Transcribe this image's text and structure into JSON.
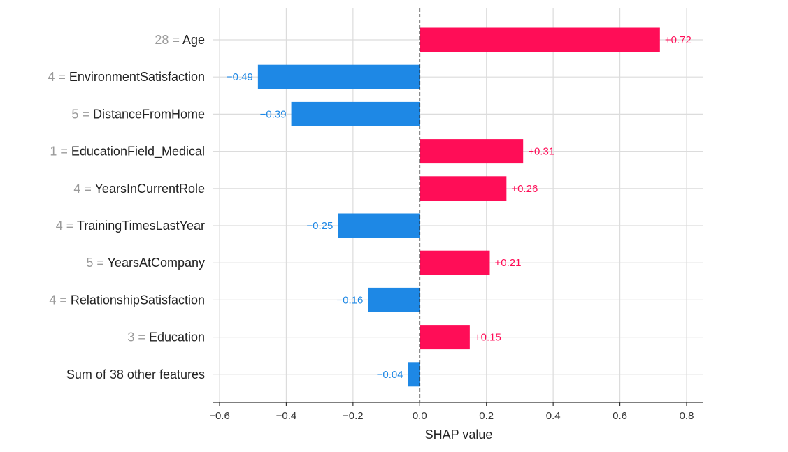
{
  "chart_data": {
    "type": "bar",
    "orientation": "horizontal",
    "xlabel": "SHAP value",
    "xlim": [
      -0.62,
      0.85
    ],
    "xticks": [
      -0.6,
      -0.4,
      -0.2,
      0.0,
      0.2,
      0.4,
      0.6,
      0.8
    ],
    "xtick_labels": [
      "−0.6",
      "−0.4",
      "−0.2",
      "0.0",
      "0.2",
      "0.4",
      "0.6",
      "0.8"
    ],
    "grid": true,
    "positive_color": "#ff0d57",
    "negative_color": "#1e88e5",
    "zero_line_style": "dashed",
    "features": [
      {
        "value_prefix": "28 = ",
        "name": "Age",
        "shap": 0.72,
        "label": "+0.72"
      },
      {
        "value_prefix": "4 = ",
        "name": "EnvironmentSatisfaction",
        "shap": -0.485,
        "label": "−0.49"
      },
      {
        "value_prefix": "5 = ",
        "name": "DistanceFromHome",
        "shap": -0.385,
        "label": "−0.39"
      },
      {
        "value_prefix": "1 = ",
        "name": "EducationField_Medical",
        "shap": 0.31,
        "label": "+0.31"
      },
      {
        "value_prefix": "4 = ",
        "name": "YearsInCurrentRole",
        "shap": 0.26,
        "label": "+0.26"
      },
      {
        "value_prefix": "4 = ",
        "name": "TrainingTimesLastYear",
        "shap": -0.245,
        "label": "−0.25"
      },
      {
        "value_prefix": "5 = ",
        "name": "YearsAtCompany",
        "shap": 0.21,
        "label": "+0.21"
      },
      {
        "value_prefix": "4 = ",
        "name": "RelationshipSatisfaction",
        "shap": -0.155,
        "label": "−0.16"
      },
      {
        "value_prefix": "3 = ",
        "name": "Education",
        "shap": 0.15,
        "label": "+0.15"
      },
      {
        "value_prefix": "",
        "name": "Sum of 38 other features",
        "shap": -0.035,
        "label": "−0.04"
      }
    ]
  }
}
